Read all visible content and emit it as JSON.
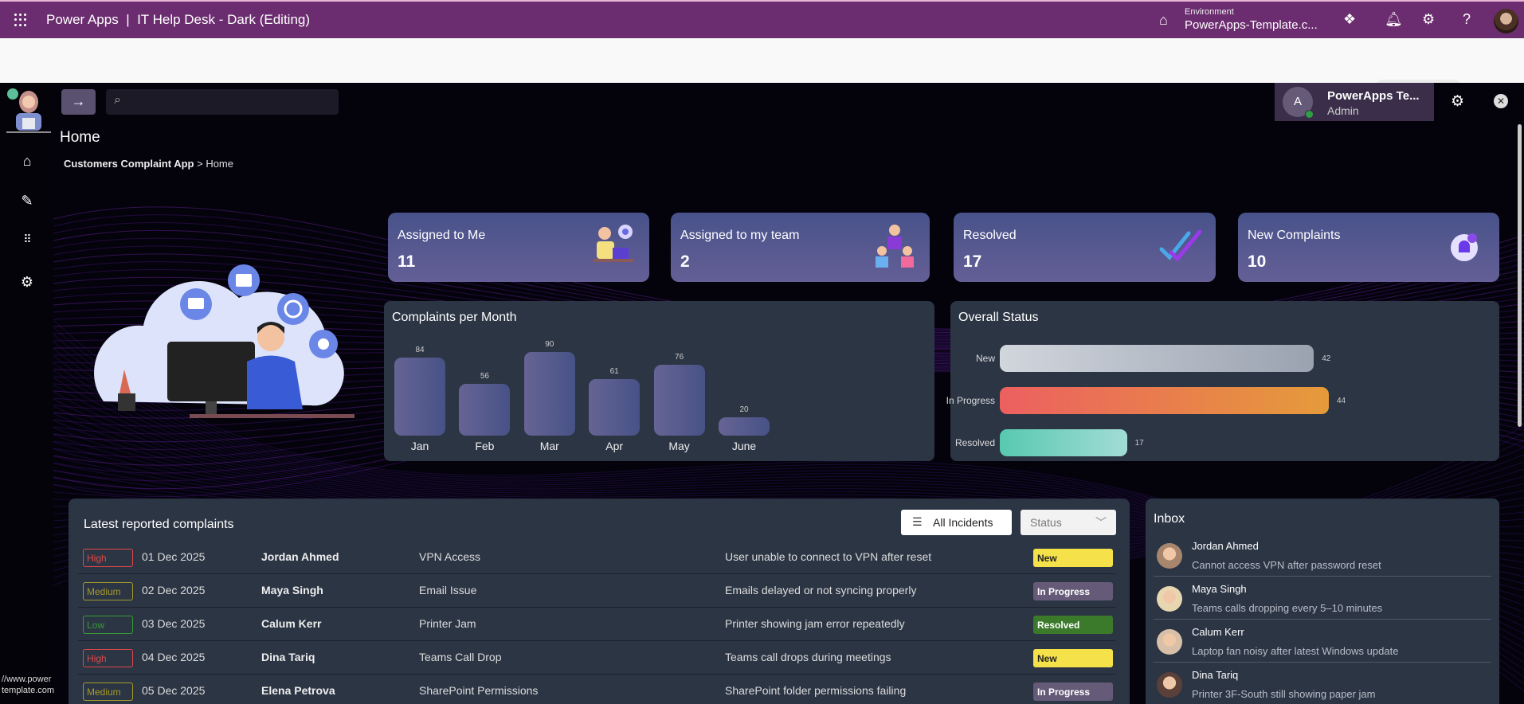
{
  "topbar": {
    "product": "Power Apps",
    "separator": "|",
    "app_title": "IT Help Desk - Dark (Editing)",
    "environment_label": "Environment",
    "environment_value": "PowerApps-Template.c...",
    "icons": [
      "waffle-icon",
      "environment-icon",
      "copilot-icon",
      "bell-icon",
      "gear-icon",
      "help-icon"
    ],
    "brand_color": "#6b2d6f"
  },
  "app": {
    "header": {
      "user_initial": "A",
      "user_name": "PowerApps Te...",
      "user_role": "Admin"
    },
    "page_title": "Home",
    "breadcrumb": {
      "root": "Customers Complaint App",
      "sep": " > ",
      "current": "Home"
    },
    "sidebar": [
      "home-icon",
      "edit-icon",
      "apps-icon",
      "settings-icon"
    ],
    "kpis": [
      {
        "label": "Assigned to Me",
        "value": "11",
        "icon": "support-agent-icon"
      },
      {
        "label": "Assigned to my team",
        "value": "2",
        "icon": "team-icon"
      },
      {
        "label": "Resolved",
        "value": "17",
        "icon": "double-check-icon"
      },
      {
        "label": "New Complaints",
        "value": "10",
        "icon": "bell-check-icon"
      }
    ],
    "footer_url": [
      "//www.power",
      "template.com"
    ]
  },
  "chart_data": [
    {
      "type": "bar",
      "title": "Complaints per Month",
      "categories": [
        "Jan",
        "Feb",
        "Mar",
        "Apr",
        "May",
        "June"
      ],
      "values": [
        84,
        56,
        90,
        61,
        76,
        20
      ],
      "value_labels": [
        "84",
        "56",
        "90",
        "61",
        "76",
        "20"
      ],
      "ylim": [
        0,
        90
      ],
      "grid": false,
      "bar_color": "#565a8e"
    },
    {
      "type": "bar",
      "orientation": "horizontal",
      "title": "Overall Status",
      "categories": [
        "New",
        "In Progress",
        "Resolved"
      ],
      "values": [
        42,
        44,
        17
      ],
      "value_labels": [
        "42",
        "44",
        "17"
      ],
      "xlim": [
        0,
        44
      ],
      "grid": false,
      "colors": [
        [
          "#d1d6dd",
          "#9aa2b0"
        ],
        [
          "#ec6060",
          "#e59b3a"
        ],
        [
          "#58c9b0",
          "#a2dcd6"
        ]
      ]
    }
  ],
  "complaints": {
    "title": "Latest reported complaints",
    "all_incidents_label": "All Incidents",
    "status_placeholder": "Status",
    "rows": [
      {
        "priority": "High",
        "date": "01 Dec 2025",
        "name": "Jordan Ahmed",
        "category": "VPN Access",
        "description": "User unable to connect to VPN after reset",
        "status": "New"
      },
      {
        "priority": "Medium",
        "date": "02 Dec 2025",
        "name": "Maya Singh",
        "category": "Email Issue",
        "description": "Emails delayed or not syncing properly",
        "status": "In Progress"
      },
      {
        "priority": "Low",
        "date": "03 Dec 2025",
        "name": "Calum Kerr",
        "category": "Printer Jam",
        "description": "Printer showing jam error repeatedly",
        "status": "Resolved"
      },
      {
        "priority": "High",
        "date": "04 Dec 2025",
        "name": "Dina Tariq",
        "category": "Teams Call Drop",
        "description": "Teams call drops during meetings",
        "status": "New"
      },
      {
        "priority": "Medium",
        "date": "05 Dec 2025",
        "name": "Elena Petrova",
        "category": "SharePoint Permissions",
        "description": "SharePoint folder permissions failing",
        "status": "In Progress"
      }
    ],
    "priority_colors": {
      "High": "#e04848",
      "Medium": "#a59a2a",
      "Low": "#3a9a35"
    },
    "status_colors": {
      "New": [
        "#f5e14a",
        "#222"
      ],
      "In Progress": [
        "#655b78",
        "#fff"
      ],
      "Resolved": [
        "#3a7a2a",
        "#fff"
      ]
    }
  },
  "inbox": {
    "title": "Inbox",
    "messages": [
      {
        "name": "Jordan Ahmed",
        "text": "Cannot access VPN after password reset"
      },
      {
        "name": "Maya Singh",
        "text": "Teams calls dropping every 5–10 minutes"
      },
      {
        "name": "Calum Kerr",
        "text": "Laptop fan noisy after latest Windows update"
      },
      {
        "name": "Dina Tariq",
        "text": "Printer 3F-South still showing paper jam"
      }
    ]
  }
}
